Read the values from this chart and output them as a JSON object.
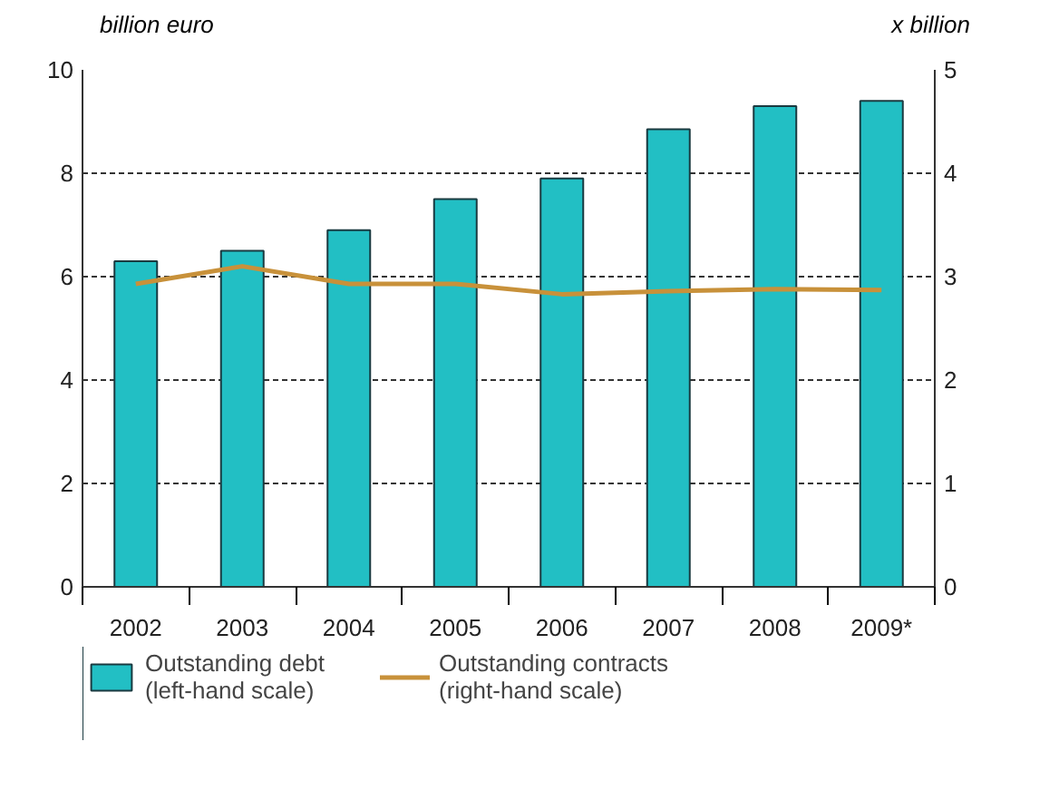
{
  "chart_data": {
    "type": "bar",
    "ylabel": "billion euro",
    "y2label": "x billion",
    "categories": [
      "2002",
      "2003",
      "2004",
      "2005",
      "2006",
      "2007",
      "2008",
      "2009*"
    ],
    "series": [
      {
        "name": "Outstanding debt\n(left-hand scale)",
        "color": "#22bfc4",
        "values": [
          6.3,
          6.5,
          6.9,
          7.5,
          7.9,
          8.85,
          9.3,
          9.4
        ]
      },
      {
        "name": "Outstanding contracts\n(right-hand scale)",
        "type": "line",
        "axis": "y2",
        "color": "#c8913a",
        "values": [
          2.93,
          3.1,
          2.93,
          2.93,
          2.83,
          2.86,
          2.88,
          2.87
        ]
      }
    ],
    "ylim": [
      0,
      10
    ],
    "yticks": [
      0,
      2,
      4,
      6,
      8,
      10
    ],
    "y2lim": [
      0,
      5
    ],
    "y2ticks": [
      0,
      1,
      2,
      3,
      4,
      5
    ],
    "grid": "y",
    "legend": "bottom",
    "marker": "none",
    "line_style": "solid"
  }
}
